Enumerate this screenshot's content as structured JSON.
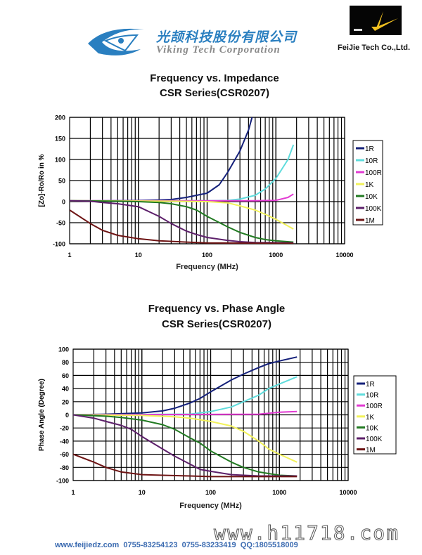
{
  "header": {
    "logo_cn": "光颉科技股份有限公司",
    "logo_en": "Viking Tech Corporation",
    "partner_name": "FeiJie Tech Co.,Ltd.",
    "partner_logo_text": "FEIJIE"
  },
  "footer": {
    "contact": "www.feijiedz.com  0755-83254123  0755-83233419  QQ:1805518009",
    "watermark": "www.h11718.com"
  },
  "colors": {
    "1R": "#14207a",
    "10R": "#5fdcdc",
    "100R": "#e23ad2",
    "1K": "#f2f25a",
    "10K": "#217a21",
    "100K": "#5c1f6a",
    "1M": "#6e1414"
  },
  "chart_data": [
    {
      "type": "line",
      "title": "Frequency vs. Impedance",
      "subtitle": "CSR Series(CSR0207)",
      "xlabel": "Frequency (MHz)",
      "ylabel": "[Zo]-Ro/Ro in %",
      "xscale": "log",
      "xlim": [
        1,
        10000
      ],
      "ylim": [
        -100,
        200
      ],
      "xticks": [
        "1",
        "10",
        "100",
        "1000",
        "10000"
      ],
      "yticks": [
        "200",
        "150",
        "100",
        "50",
        "0",
        "-50",
        "-100"
      ],
      "ytick_values": [
        200,
        150,
        100,
        50,
        0,
        -50,
        -100
      ],
      "grid": true,
      "legend": "right",
      "series": [
        {
          "name": "1R",
          "x": [
            1,
            3,
            10,
            20,
            30,
            50,
            70,
            100,
            150,
            200,
            300,
            400,
            450
          ],
          "y": [
            2,
            2,
            3,
            4,
            5,
            10,
            15,
            20,
            40,
            70,
            120,
            170,
            200
          ]
        },
        {
          "name": "10R",
          "x": [
            1,
            100,
            200,
            300,
            500,
            700,
            1000,
            1500,
            1800
          ],
          "y": [
            2,
            2,
            3,
            6,
            15,
            30,
            55,
            100,
            135
          ]
        },
        {
          "name": "100R",
          "x": [
            1,
            100,
            500,
            1000,
            1500,
            1800
          ],
          "y": [
            2,
            2,
            2,
            3,
            10,
            18
          ]
        },
        {
          "name": "1K",
          "x": [
            1,
            30,
            100,
            200,
            300,
            500,
            700,
            1000,
            1800
          ],
          "y": [
            2,
            1,
            0,
            -3,
            -10,
            -20,
            -30,
            -42,
            -65
          ]
        },
        {
          "name": "10K",
          "x": [
            1,
            5,
            10,
            20,
            30,
            50,
            70,
            100,
            200,
            300,
            500,
            700,
            1000,
            1800
          ],
          "y": [
            2,
            1,
            0,
            -2,
            -5,
            -12,
            -20,
            -35,
            -60,
            -73,
            -85,
            -90,
            -93,
            -96
          ]
        },
        {
          "name": "100K",
          "x": [
            1,
            2,
            3,
            5,
            10,
            20,
            30,
            50,
            70,
            100,
            200,
            300,
            500,
            1800
          ],
          "y": [
            2,
            1,
            -2,
            -5,
            -12,
            -35,
            -52,
            -70,
            -78,
            -85,
            -92,
            -95,
            -97,
            -98
          ]
        },
        {
          "name": "1M",
          "x": [
            1,
            2,
            3,
            5,
            10,
            20,
            50,
            100,
            1800
          ],
          "y": [
            -20,
            -52,
            -68,
            -80,
            -88,
            -93,
            -96,
            -98,
            -99
          ]
        }
      ]
    },
    {
      "type": "line",
      "title": "Frequency vs. Phase Angle",
      "subtitle": "CSR Series(CSR0207)",
      "xlabel": "Frequency (MHz)",
      "ylabel": "Phase Angle (Degree)",
      "xscale": "log",
      "xlim": [
        1,
        10000
      ],
      "ylim": [
        -100,
        100
      ],
      "xticks": [
        "1",
        "10",
        "100",
        "1000",
        "10000"
      ],
      "yticks": [
        "100",
        "80",
        "60",
        "40",
        "20",
        "0",
        "-20",
        "-40",
        "-60",
        "-80",
        "-100"
      ],
      "ytick_values": [
        100,
        80,
        60,
        40,
        20,
        0,
        -20,
        -40,
        -60,
        -80,
        -100
      ],
      "grid": true,
      "legend": "right",
      "series": [
        {
          "name": "1R",
          "x": [
            1,
            3,
            10,
            20,
            30,
            50,
            70,
            100,
            200,
            300,
            500,
            700,
            1000,
            1800
          ],
          "y": [
            0,
            1,
            3,
            6,
            10,
            18,
            25,
            35,
            53,
            62,
            72,
            78,
            82,
            88
          ]
        },
        {
          "name": "10R",
          "x": [
            1,
            50,
            100,
            200,
            300,
            500,
            700,
            1000,
            1800
          ],
          "y": [
            0,
            1,
            5,
            12,
            20,
            30,
            40,
            47,
            58
          ]
        },
        {
          "name": "100R",
          "x": [
            1,
            500,
            1000,
            1800
          ],
          "y": [
            0,
            1,
            4,
            5
          ]
        },
        {
          "name": "1K",
          "x": [
            1,
            10,
            30,
            50,
            100,
            200,
            300,
            500,
            700,
            1000,
            1800
          ],
          "y": [
            0,
            -1,
            -3,
            -5,
            -10,
            -17,
            -25,
            -40,
            -52,
            -60,
            -72
          ]
        },
        {
          "name": "10K",
          "x": [
            1,
            3,
            5,
            10,
            20,
            30,
            50,
            70,
            100,
            200,
            300,
            500,
            1000,
            1800
          ],
          "y": [
            0,
            -2,
            -4,
            -8,
            -15,
            -22,
            -35,
            -43,
            -55,
            -72,
            -80,
            -87,
            -92,
            -93
          ]
        },
        {
          "name": "100K",
          "x": [
            1,
            2,
            3,
            5,
            7,
            10,
            20,
            30,
            50,
            70,
            100,
            200,
            500,
            1800
          ],
          "y": [
            0,
            -5,
            -10,
            -16,
            -22,
            -33,
            -52,
            -63,
            -75,
            -83,
            -86,
            -91,
            -93,
            -93
          ]
        },
        {
          "name": "1M",
          "x": [
            1,
            2,
            3,
            5,
            10,
            20,
            50,
            100,
            1800
          ],
          "y": [
            -60,
            -72,
            -80,
            -87,
            -91,
            -92,
            -93,
            -94,
            -94
          ]
        }
      ]
    }
  ]
}
